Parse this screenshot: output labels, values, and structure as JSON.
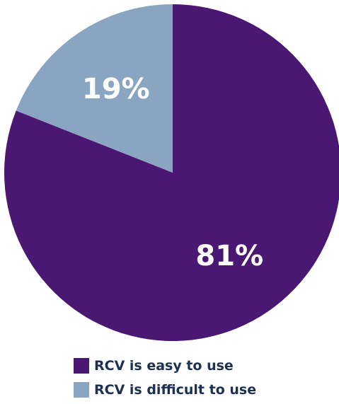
{
  "chart_data": {
    "type": "pie",
    "slices": [
      {
        "label": "RCV is easy to use",
        "value": 81,
        "display": "81%",
        "color": "#4a1872"
      },
      {
        "label": "RCV is difficult to use",
        "value": 19,
        "display": "19%",
        "color": "#89a5c1"
      }
    ],
    "legend_position": "bottom"
  }
}
